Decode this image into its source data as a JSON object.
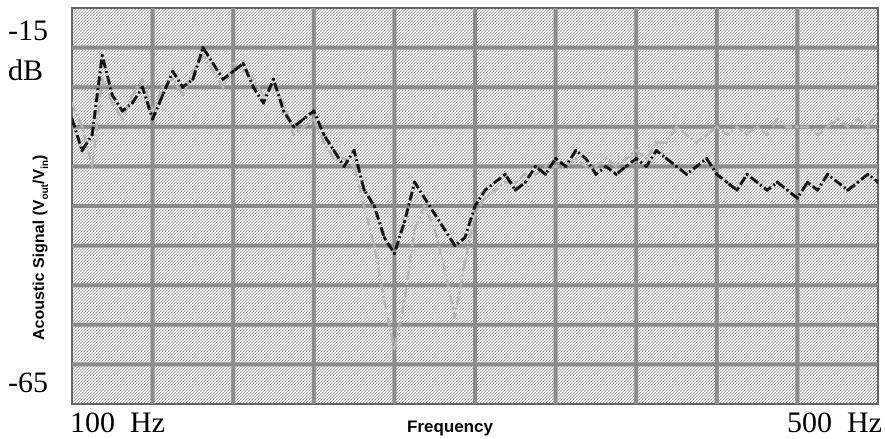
{
  "chart_data": {
    "type": "line",
    "title": "",
    "xlabel": "Frequency",
    "ylabel_parts": [
      "Acoustic Signal (V",
      "out",
      "/V",
      "in",
      ")"
    ],
    "y_unit": "dB",
    "x_tick_labels": {
      "left": "100  Hz",
      "right": "500  Hz"
    },
    "y_tick_labels": {
      "top": "-15",
      "bottom": "-65"
    },
    "xlim": [
      100,
      500
    ],
    "ylim": [
      -65,
      -15
    ],
    "grid": true,
    "legend": "none",
    "colors": {
      "dark_series": "#111111",
      "light_series": "#b4b4b4",
      "grid": "#8c8c8c",
      "plot_bg": "#e6e6e6"
    },
    "series": [
      {
        "style": "dash-dot, dark",
        "x": [
          100,
          105,
          110,
          115,
          120,
          125,
          130,
          135,
          140,
          145,
          150,
          155,
          160,
          165,
          170,
          175,
          180,
          185,
          190,
          195,
          200,
          205,
          210,
          215,
          220,
          225,
          230,
          235,
          240,
          245,
          250,
          255,
          260,
          265,
          270,
          275,
          280,
          285,
          290,
          295,
          300,
          305,
          310,
          315,
          320,
          325,
          330,
          335,
          340,
          345,
          350,
          355,
          360,
          365,
          370,
          375,
          380,
          385,
          390,
          395,
          400,
          405,
          410,
          415,
          420,
          425,
          430,
          435,
          440,
          445,
          450,
          455,
          460,
          465,
          470,
          475,
          480,
          485,
          490,
          495,
          500
        ],
        "y": [
          -29,
          -33,
          -31,
          -21,
          -26,
          -28,
          -27,
          -25,
          -29,
          -26,
          -23,
          -25,
          -24,
          -20,
          -22,
          -24,
          -23,
          -22,
          -25,
          -27,
          -24,
          -28,
          -30,
          -29,
          -28,
          -31,
          -33,
          -35,
          -33,
          -38,
          -40,
          -44,
          -46,
          -42,
          -37,
          -39,
          -41,
          -43,
          -45,
          -44,
          -40,
          -38,
          -37,
          -36,
          -38,
          -37,
          -35,
          -36,
          -34,
          -35,
          -33,
          -34,
          -36,
          -35,
          -36,
          -35,
          -34,
          -35,
          -33,
          -34,
          -35,
          -36,
          -35,
          -34,
          -36,
          -37,
          -38,
          -36,
          -37,
          -38,
          -37,
          -38,
          -39,
          -37,
          -38,
          -36,
          -37,
          -38,
          -37,
          -36,
          -37
        ]
      },
      {
        "style": "dash-dot, light",
        "x": [
          100,
          105,
          110,
          115,
          120,
          125,
          130,
          135,
          140,
          145,
          150,
          155,
          160,
          165,
          170,
          175,
          180,
          185,
          190,
          195,
          200,
          205,
          210,
          215,
          220,
          225,
          230,
          235,
          240,
          245,
          250,
          255,
          260,
          265,
          270,
          275,
          280,
          285,
          290,
          295,
          300,
          305,
          310,
          315,
          320,
          325,
          330,
          335,
          340,
          345,
          350,
          355,
          360,
          365,
          370,
          375,
          380,
          385,
          390,
          395,
          400,
          405,
          410,
          415,
          420,
          425,
          430,
          435,
          440,
          445,
          450,
          455,
          460,
          465,
          470,
          475,
          480,
          485,
          490,
          495,
          500
        ],
        "y": [
          -27,
          -30,
          -35,
          -24,
          -27,
          -29,
          -26,
          -24,
          -28,
          -25,
          -24,
          -26,
          -23,
          -21,
          -23,
          -25,
          -22,
          -23,
          -24,
          -26,
          -25,
          -27,
          -31,
          -30,
          -29,
          -32,
          -34,
          -34,
          -35,
          -40,
          -45,
          -52,
          -58,
          -52,
          -43,
          -40,
          -43,
          -48,
          -54,
          -47,
          -41,
          -39,
          -38,
          -37,
          -37,
          -36,
          -36,
          -35,
          -35,
          -35,
          -34,
          -35,
          -35,
          -34,
          -35,
          -34,
          -33,
          -34,
          -32,
          -32,
          -30,
          -31,
          -32,
          -31,
          -30,
          -31,
          -30,
          -31,
          -30,
          -31,
          -29,
          -30,
          -30,
          -30,
          -31,
          -30,
          -29,
          -30,
          -29,
          -30,
          -28
        ]
      }
    ]
  }
}
